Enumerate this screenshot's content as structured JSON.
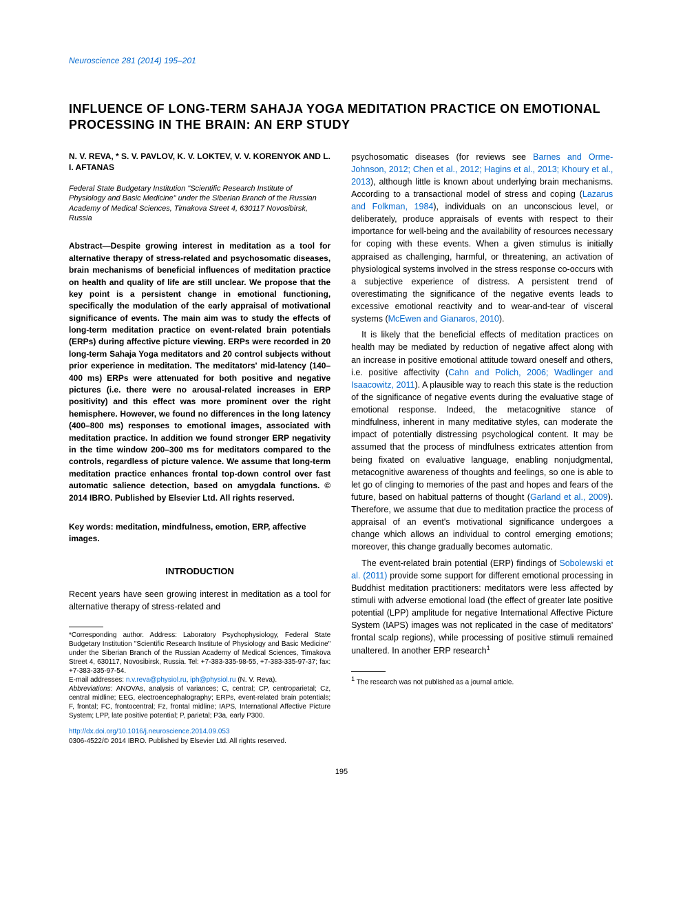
{
  "journal": {
    "citation": "Neuroscience 281 (2014) 195–201"
  },
  "article": {
    "title": "INFLUENCE OF LONG-TERM SAHAJA YOGA MEDITATION PRACTICE ON EMOTIONAL PROCESSING IN THE BRAIN: AN ERP STUDY",
    "authors": "N. V. REVA, * S. V. PAVLOV, K. V. LOKTEV, V. V. KORENYOK AND L. I. AFTANAS",
    "affiliation": "Federal State Budgetary Institution \"Scientific Research Institute of Physiology and Basic Medicine\" under the Siberian Branch of the Russian Academy of Medical Sciences, Timakova Street 4, 630117 Novosibirsk, Russia",
    "abstract": "Abstract—Despite growing interest in meditation as a tool for alternative therapy of stress-related and psychosomatic diseases, brain mechanisms of beneficial influences of meditation practice on health and quality of life are still unclear. We propose that the key point is a persistent change in emotional functioning, specifically the modulation of the early appraisal of motivational significance of events. The main aim was to study the effects of long-term meditation practice on event-related brain potentials (ERPs) during affective picture viewing. ERPs were recorded in 20 long-term Sahaja Yoga meditators and 20 control subjects without prior experience in meditation. The meditators' mid-latency (140–400 ms) ERPs were attenuated for both positive and negative pictures (i.e. there were no arousal-related increases in ERP positivity) and this effect was more prominent over the right hemisphere. However, we found no differences in the long latency (400–800 ms) responses to emotional images, associated with meditation practice. In addition we found stronger ERP negativity in the time window 200–300 ms for meditators compared to the controls, regardless of picture valence. We assume that long-term meditation practice enhances frontal top-down control over fast automatic salience detection, based on amygdala functions. © 2014 IBRO. Published by Elsevier Ltd. All rights reserved.",
    "keywords": "Key words: meditation, mindfulness, emotion, ERP, affective images.",
    "introduction_heading": "INTRODUCTION",
    "intro_p1": "Recent years have seen growing interest in meditation as a tool for alternative therapy of stress-related and",
    "body_p1_a": "psychosomatic diseases (for reviews see ",
    "body_cite1": "Barnes and Orme-Johnson, 2012; Chen et al., 2012; Hagins et al., 2013; Khoury et al., 2013",
    "body_p1_b": "), although little is known about underlying brain mechanisms. According to a transactional model of stress and coping (",
    "body_cite2": "Lazarus and Folkman, 1984",
    "body_p1_c": "), individuals on an unconscious level, or deliberately, produce appraisals of events with respect to their importance for well-being and the availability of resources necessary for coping with these events. When a given stimulus is initially appraised as challenging, harmful, or threatening, an activation of physiological systems involved in the stress response co-occurs with a subjective experience of distress. A persistent trend of overestimating the significance of the negative events leads to excessive emotional reactivity and to wear-and-tear of visceral systems (",
    "body_cite3": "McEwen and Gianaros, 2010",
    "body_p1_d": ").",
    "body_p2_a": "It is likely that the beneficial effects of meditation practices on health may be mediated by reduction of negative affect along with an increase in positive emotional attitude toward oneself and others, i.e. positive affectivity (",
    "body_cite4": "Cahn and Polich, 2006; Wadlinger and Isaacowitz, 2011",
    "body_p2_b": "). A plausible way to reach this state is the reduction of the significance of negative events during the evaluative stage of emotional response. Indeed, the metacognitive stance of mindfulness, inherent in many meditative styles, can moderate the impact of potentially distressing psychological content. It may be assumed that the process of mindfulness extricates attention from being fixated on evaluative language, enabling nonjudgmental, metacognitive awareness of thoughts and feelings, so one is able to let go of clinging to memories of the past and hopes and fears of the future, based on habitual patterns of thought (",
    "body_cite5": "Garland et al., 2009",
    "body_p2_c": "). Therefore, we assume that due to meditation practice the process of appraisal of an event's motivational significance undergoes a change which allows an individual to control emerging emotions; moreover, this change gradually becomes automatic.",
    "body_p3_a": "The event-related brain potential (ERP) findings of ",
    "body_cite6": "Sobolewski et al. (2011)",
    "body_p3_b": " provide some support for different emotional processing in Buddhist meditation practitioners: meditators were less affected by stimuli with adverse emotional load (the effect of greater late positive potential (LPP) amplitude for negative International Affective Picture System (IAPS) images was not replicated in the case of meditators' frontal scalp regions), while processing of positive stimuli remained unaltered. In another ERP research",
    "footnote_author": "*Corresponding author. Address: Laboratory Psychophysiology, Federal State Budgetary Institution \"Scientific Research Institute of Physiology and Basic Medicine\" under the Siberian Branch of the Russian Academy of Medical Sciences, Timakova Street 4, 630117, Novosibirsk, Russia. Tel: +7-383-335-98-55, +7-383-335-97-37; fax: +7-383-335-97-54.",
    "footnote_email_label": "E-mail addresses: ",
    "footnote_email1": "n.v.reva@physiol.ru",
    "footnote_email_sep": ", ",
    "footnote_email2": "iph@physiol.ru",
    "footnote_email_suffix": " (N. V. Reva).",
    "footnote_abbrev_label": "Abbreviations: ",
    "footnote_abbrev": "ANOVAs, analysis of variances; C, central; CP, centroparietal; Cz, central midline; EEG, electroencephalography; ERPs, event-related brain potentials; F, frontal; FC, frontocentral; Fz, frontal midline; IAPS, International Affective Picture System; LPP, late positive potential; P, parietal; P3a, early P300.",
    "footnote_right": " The research was not published as a journal article.",
    "doi_url": "http://dx.doi.org/10.1016/j.neuroscience.2014.09.053",
    "copyright": "0306-4522/© 2014 IBRO. Published by Elsevier Ltd. All rights reserved.",
    "page_number": "195"
  },
  "colors": {
    "link_color": "#0066cc",
    "text_color": "#000000",
    "background": "#ffffff"
  },
  "typography": {
    "body_font": "Arial, Helvetica, sans-serif",
    "title_fontsize": 18,
    "body_fontsize": 12.5,
    "footnote_fontsize": 10
  }
}
